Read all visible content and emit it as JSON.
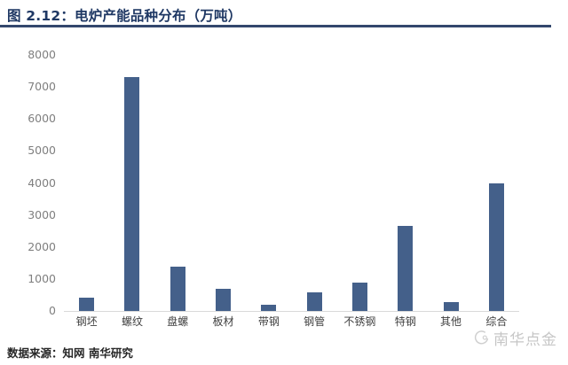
{
  "title": "图 2.12：电炉产能品种分布（万吨）",
  "source": "数据来源：知网 南华研究",
  "watermark": "南华点金",
  "colors": {
    "title": "#1f3864",
    "rule": "#33476d",
    "bar": "#44608a",
    "axis_line": "#d9d9d9",
    "tick_label": "#7f7f7f",
    "category_label": "#404040",
    "source_text": "#262626",
    "watermark": "#bdbdbd"
  },
  "chart_data": {
    "type": "bar",
    "title": "电炉产能品种分布（万吨）",
    "categories": [
      "钢坯",
      "螺纹",
      "盘螺",
      "板材",
      "带钢",
      "钢管",
      "不锈钢",
      "特钢",
      "其他",
      "综合"
    ],
    "values": [
      420,
      7300,
      1380,
      680,
      190,
      570,
      880,
      2650,
      290,
      4000
    ],
    "xlabel": "",
    "ylabel": "",
    "ylim": [
      0,
      8000
    ],
    "yticks": [
      0,
      1000,
      2000,
      3000,
      4000,
      5000,
      6000,
      7000,
      8000
    ],
    "grid": false,
    "legend": false,
    "bar_color": "#44608a"
  }
}
